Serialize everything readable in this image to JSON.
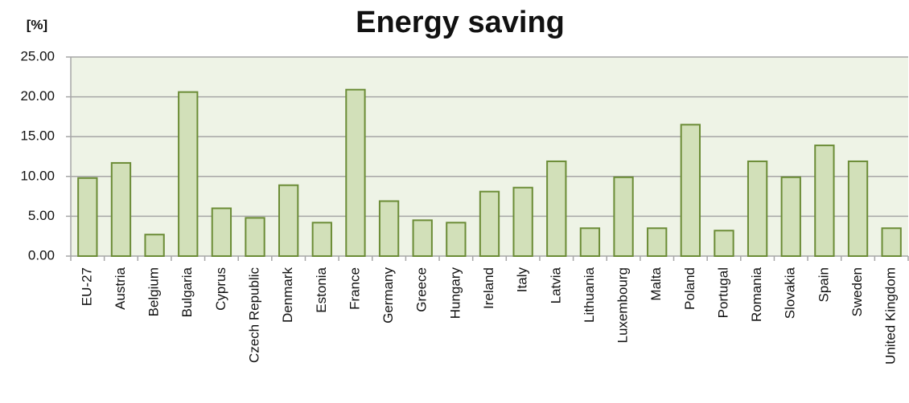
{
  "chart_data": {
    "type": "bar",
    "title": "Energy saving",
    "y_label": "[%]",
    "categories": [
      "EU-27",
      "Austria",
      "Belgium",
      "Bulgaria",
      "Cyprus",
      "Czech Republic",
      "Denmark",
      "Estonia",
      "France",
      "Germany",
      "Greece",
      "Hungary",
      "Ireland",
      "Italy",
      "Latvia",
      "Lithuania",
      "Luxembourg",
      "Malta",
      "Poland",
      "Portugal",
      "Romania",
      "Slovakia",
      "Spain",
      "Sweden",
      "United Kingdom"
    ],
    "values": [
      9.8,
      11.7,
      2.7,
      20.6,
      6.0,
      4.8,
      8.9,
      4.2,
      20.9,
      6.9,
      4.5,
      4.2,
      8.1,
      8.6,
      11.9,
      3.5,
      9.9,
      3.5,
      16.5,
      3.2,
      11.9,
      9.9,
      13.9,
      11.9,
      3.5
    ],
    "color": "#d2e0b9",
    "edge_color": "#6b8c36",
    "ylim": [
      0,
      25
    ],
    "yticks": [
      {
        "value": 0,
        "label": "0.00"
      },
      {
        "value": 5,
        "label": "5.00"
      },
      {
        "value": 10,
        "label": "10.00"
      },
      {
        "value": 15,
        "label": "15.00"
      },
      {
        "value": 20,
        "label": "20.00"
      },
      {
        "value": 25,
        "label": "25.00"
      }
    ],
    "grid": true
  }
}
